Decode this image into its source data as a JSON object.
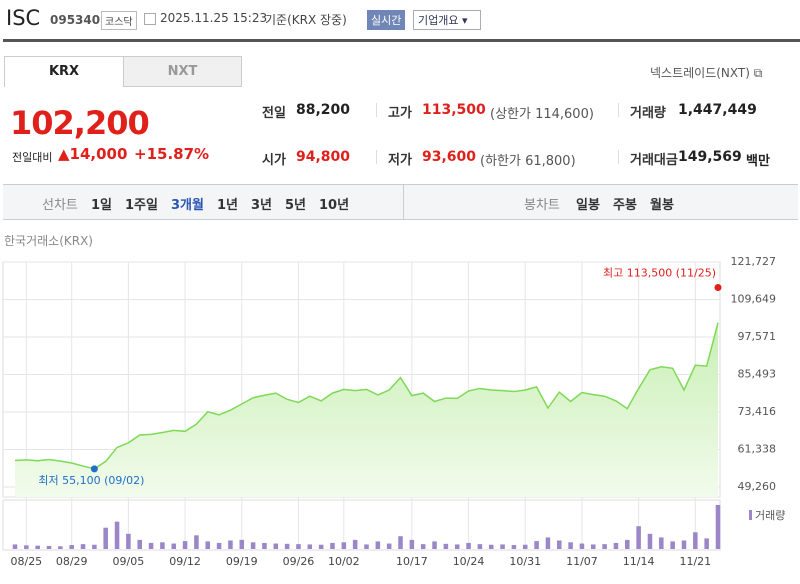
{
  "header": {
    "name": "ISC",
    "code": "095340",
    "market": "코스닥",
    "datetime": "2025.11.25 15:23",
    "basis": "기준(KRX 장중)",
    "realtime": "실시간",
    "company": "기업개요"
  },
  "tabs": {
    "active": "KRX",
    "other": "NXT",
    "nxt_link": "넥스트레이드(NXT)"
  },
  "quote": {
    "price": "102,200",
    "change_label": "전일대비",
    "change": "14,000",
    "rate": "+15.87%",
    "items": [
      {
        "label": "전일",
        "value": "88,200"
      },
      {
        "label": "고가",
        "value": "113,500",
        "note": "(상한가 114,600)"
      },
      {
        "label": "거래량",
        "value": "1,447,449"
      },
      {
        "label": "시가",
        "value": "94,800"
      },
      {
        "label": "저가",
        "value": "93,600",
        "note": "(하한가 61,800)"
      },
      {
        "label": "거래대금",
        "value": "149,569",
        "unit": "백만"
      }
    ]
  },
  "periods": {
    "line_label": "선차트",
    "line": [
      "1일",
      "1주일",
      "3개월",
      "1년",
      "3년",
      "5년",
      "10년"
    ],
    "active": "3개월",
    "candle_label": "봉차트",
    "candle": [
      "일봉",
      "주봉",
      "월봉"
    ]
  },
  "chart_data": {
    "type": "area",
    "subtitle": "한국거래소(KRX)",
    "color": "#7ed957",
    "volume_color": "#9b87c8",
    "volume_legend": "거래량",
    "grid": true,
    "categories": [
      null,
      "08/25",
      null,
      null,
      null,
      "08/29",
      null,
      null,
      null,
      null,
      "09/05",
      null,
      null,
      null,
      null,
      "09/12",
      null,
      null,
      null,
      null,
      "09/19",
      null,
      null,
      null,
      null,
      "09/26",
      null,
      null,
      null,
      "10/02",
      null,
      null,
      null,
      null,
      null,
      "10/17",
      null,
      null,
      null,
      null,
      "10/24",
      null,
      null,
      null,
      null,
      "10/31",
      null,
      null,
      null,
      null,
      "11/07",
      null,
      null,
      null,
      null,
      "11/14",
      null,
      null,
      null,
      null,
      "11/21",
      null,
      null
    ],
    "values": [
      57800,
      58000,
      57700,
      58100,
      57600,
      57000,
      56000,
      55100,
      57500,
      62000,
      63500,
      66000,
      66200,
      66800,
      67500,
      67200,
      69500,
      73500,
      72500,
      74000,
      76000,
      78000,
      78800,
      79500,
      77500,
      76500,
      78500,
      77000,
      79500,
      80700,
      80300,
      80700,
      78900,
      80500,
      84500,
      78700,
      79500,
      76800,
      77900,
      77800,
      80200,
      81000,
      80500,
      80300,
      80000,
      80500,
      81500,
      74700,
      79800,
      76800,
      79700,
      79000,
      78500,
      77000,
      74500,
      81000,
      87000,
      88000,
      87500,
      80500,
      88500,
      88200,
      102200
    ],
    "volume": [
      150000,
      120000,
      110000,
      100000,
      90000,
      130000,
      160000,
      140000,
      700000,
      900000,
      500000,
      300000,
      200000,
      220000,
      180000,
      260000,
      450000,
      250000,
      200000,
      280000,
      300000,
      220000,
      200000,
      180000,
      170000,
      160000,
      150000,
      140000,
      200000,
      220000,
      300000,
      150000,
      250000,
      180000,
      420000,
      300000,
      160000,
      250000,
      170000,
      150000,
      200000,
      160000,
      140000,
      150000,
      130000,
      140000,
      260000,
      380000,
      280000,
      220000,
      180000,
      150000,
      160000,
      200000,
      300000,
      750000,
      500000,
      380000,
      250000,
      280000,
      550000,
      350000,
      1447449
    ],
    "ylim": [
      46040,
      121727
    ],
    "yticks": [
      {
        "value": 49260,
        "label": "49,260"
      },
      {
        "value": 61338,
        "label": "61,338"
      },
      {
        "value": 73416,
        "label": "73,416"
      },
      {
        "value": 85493,
        "label": "85,493"
      },
      {
        "value": 97571,
        "label": "97,571"
      },
      {
        "value": 109649,
        "label": "109,649"
      },
      {
        "value": 121727,
        "label": "121,727"
      }
    ],
    "annotations": [
      {
        "text": "최고 113,500 (11/25)",
        "value": 113500,
        "index": 62,
        "color": "#e0201b"
      },
      {
        "text": "최저 55,100 (09/02)",
        "value": 55100,
        "index": 7,
        "color": "#1f6fc5"
      }
    ]
  }
}
